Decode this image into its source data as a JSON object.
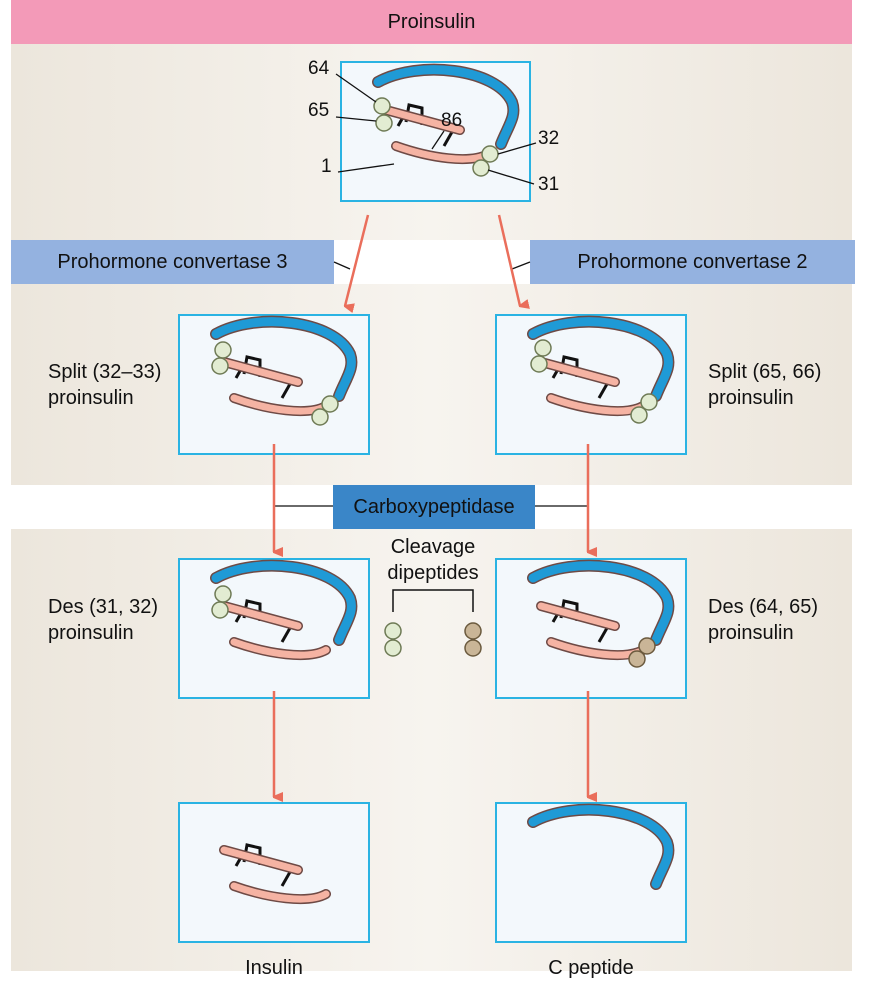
{
  "header": {
    "title": "Proinsulin"
  },
  "top_panel": {
    "residue_labels": {
      "r64": "64",
      "r65": "65",
      "r86": "86",
      "r1": "1",
      "r32": "32",
      "r31": "31"
    }
  },
  "enzymes": {
    "left": "Prohormone convertase 3",
    "right": "Prohormone convertase 2",
    "middle": "Carboxypeptidase"
  },
  "intermediates": {
    "split_left": {
      "line1": "Split (32–33)",
      "line2": "proinsulin"
    },
    "split_right": {
      "line1": "Split (65, 66)",
      "line2": "proinsulin"
    },
    "des_left": {
      "line1": "Des (31, 32)",
      "line2": "proinsulin"
    },
    "des_right": {
      "line1": "Des (64, 65)",
      "line2": "proinsulin"
    }
  },
  "cleavage": {
    "line1": "Cleavage",
    "line2": "dipeptides"
  },
  "products": {
    "left": "Insulin",
    "right": "C peptide"
  },
  "colors": {
    "header_pink": "#f39ab8",
    "enzyme_light_blue": "#94b2e0",
    "enzyme_dark_blue": "#3a86c8",
    "panel_border": "#2ab3e3",
    "c_peptide_blue": "#1f9ad6",
    "chain_salmon": "#f5b3a3",
    "residue_green": "#e2ecd2",
    "residue_tan": "#c9b597",
    "arrow_red": "#ea6e5b"
  }
}
